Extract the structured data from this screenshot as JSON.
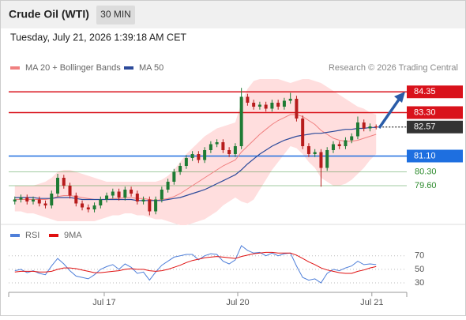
{
  "header": {
    "title": "Crude Oil (WTI)",
    "timeframe": "30 MIN",
    "timestamp": "Tuesday, July 21, 2026 1:39:18 AM CET"
  },
  "chart_data": [
    {
      "type": "candlestick",
      "credit": "Research © 2026 Trading Central",
      "xlim": [
        -1,
        64
      ],
      "ylim": [
        77.8,
        85.0
      ],
      "up_color": "#1e7b34",
      "down_color": "#b71c1c",
      "open": [
        78.8,
        78.9,
        79.0,
        78.8,
        78.9,
        78.7,
        78.6,
        79.2,
        80.0,
        79.6,
        79.1,
        78.7,
        78.5,
        78.4,
        78.6,
        78.9,
        79.1,
        79.3,
        79.0,
        79.4,
        79.2,
        78.8,
        78.9,
        78.3,
        78.9,
        79.4,
        79.8,
        80.3,
        80.6,
        81.0,
        81.2,
        80.9,
        81.4,
        81.7,
        81.8,
        81.4,
        81.2,
        81.6,
        84.1,
        83.8,
        83.6,
        83.7,
        83.5,
        83.8,
        83.6,
        83.9,
        84.0,
        83.0,
        81.6,
        81.2,
        81.3,
        80.5,
        81.4,
        81.7,
        81.6,
        81.9,
        82.1,
        82.8,
        82.5,
        82.6
      ],
      "high": [
        79.05,
        79.15,
        79.15,
        79.05,
        79.05,
        78.85,
        79.35,
        80.2,
        80.15,
        79.75,
        79.25,
        78.85,
        78.65,
        78.75,
        79.05,
        79.25,
        79.45,
        79.45,
        79.55,
        79.55,
        79.35,
        79.05,
        79.05,
        79.05,
        79.55,
        79.95,
        80.45,
        80.75,
        81.15,
        81.35,
        81.35,
        81.55,
        81.85,
        81.95,
        81.95,
        81.55,
        81.75,
        84.55,
        84.25,
        83.95,
        83.85,
        83.85,
        83.95,
        83.95,
        84.05,
        84.3,
        84.15,
        83.15,
        81.75,
        81.45,
        81.45,
        81.55,
        81.85,
        81.85,
        82.05,
        82.25,
        83.1,
        82.95,
        82.75,
        82.7
      ],
      "low": [
        78.65,
        78.75,
        78.65,
        78.65,
        78.55,
        78.45,
        78.45,
        79.05,
        79.45,
        78.95,
        78.55,
        78.35,
        78.25,
        78.25,
        78.45,
        78.75,
        78.95,
        78.85,
        78.85,
        79.05,
        78.65,
        78.65,
        78.1,
        78.15,
        78.75,
        79.25,
        79.65,
        80.15,
        80.45,
        80.85,
        80.75,
        80.75,
        81.25,
        81.55,
        81.25,
        81.05,
        81.05,
        81.45,
        83.65,
        83.45,
        83.45,
        83.35,
        83.35,
        83.45,
        83.45,
        83.75,
        82.85,
        81.45,
        81.05,
        81.05,
        79.55,
        80.35,
        81.25,
        81.45,
        81.45,
        81.75,
        81.95,
        82.35,
        82.35,
        82.45
      ],
      "close": [
        78.9,
        79.0,
        78.8,
        78.9,
        78.7,
        78.6,
        79.2,
        80.0,
        79.6,
        79.1,
        78.7,
        78.5,
        78.4,
        78.6,
        78.9,
        79.1,
        79.3,
        79.0,
        79.4,
        79.2,
        78.8,
        78.9,
        78.3,
        78.9,
        79.4,
        79.8,
        80.3,
        80.6,
        81.0,
        81.2,
        80.9,
        81.4,
        81.7,
        81.8,
        81.4,
        81.2,
        81.6,
        84.1,
        83.8,
        83.6,
        83.7,
        83.5,
        83.8,
        83.6,
        83.9,
        84.0,
        83.0,
        81.6,
        81.2,
        81.3,
        80.5,
        81.4,
        81.7,
        81.6,
        81.9,
        82.1,
        82.8,
        82.5,
        82.6,
        82.57
      ],
      "series": [
        {
          "name": "MA 20 + Bollinger Bands",
          "color": "#f08080",
          "band_color": "#ffdede",
          "values": [
            78.9,
            78.9,
            78.9,
            78.9,
            78.9,
            78.9,
            78.95,
            79.05,
            79.1,
            79.1,
            79.05,
            79.0,
            78.95,
            78.9,
            78.9,
            78.9,
            78.95,
            78.95,
            79.0,
            79.0,
            78.95,
            78.95,
            78.9,
            78.85,
            78.9,
            78.95,
            79.05,
            79.2,
            79.4,
            79.6,
            79.8,
            80.0,
            80.2,
            80.4,
            80.6,
            80.75,
            80.9,
            81.3,
            81.6,
            81.9,
            82.2,
            82.45,
            82.7,
            82.9,
            83.05,
            83.2,
            83.2,
            83.1,
            82.9,
            82.7,
            82.4,
            82.2,
            82.0,
            81.9,
            81.85,
            81.85,
            81.9,
            82.0,
            82.1,
            82.2
          ],
          "upper": [
            79.6,
            79.6,
            79.6,
            79.6,
            79.7,
            79.8,
            80.0,
            80.3,
            80.4,
            80.4,
            80.3,
            80.2,
            80.1,
            80.0,
            79.9,
            79.8,
            79.8,
            79.8,
            79.8,
            79.8,
            79.8,
            79.8,
            79.8,
            79.8,
            79.9,
            80.1,
            80.4,
            80.8,
            81.2,
            81.5,
            81.8,
            82.1,
            82.3,
            82.5,
            82.6,
            82.7,
            82.8,
            83.8,
            84.5,
            84.9,
            85.0,
            85.0,
            85.0,
            85.0,
            84.9,
            84.8,
            84.9,
            85.0,
            85.0,
            84.9,
            84.8,
            84.6,
            84.4,
            84.2,
            84.0,
            83.8,
            83.6,
            83.5,
            83.3,
            83.2
          ],
          "lower": [
            78.3,
            78.3,
            78.2,
            78.2,
            78.1,
            78.0,
            77.9,
            77.8,
            77.8,
            77.8,
            77.8,
            77.8,
            77.8,
            77.8,
            77.9,
            78.0,
            78.1,
            78.1,
            78.2,
            78.2,
            78.1,
            78.1,
            78.0,
            77.9,
            77.9,
            77.8,
            77.7,
            77.6,
            77.6,
            77.7,
            77.8,
            77.9,
            78.1,
            78.3,
            78.6,
            78.8,
            79.0,
            78.8,
            78.7,
            78.9,
            79.4,
            79.9,
            80.4,
            80.8,
            81.2,
            81.6,
            81.5,
            81.2,
            80.8,
            80.5,
            80.0,
            79.8,
            79.6,
            79.6,
            79.7,
            79.9,
            80.2,
            80.5,
            80.9,
            81.2
          ]
        },
        {
          "name": "MA 50",
          "color": "#2c4a9a",
          "values": [
            79.0,
            79.0,
            79.0,
            79.0,
            78.95,
            78.95,
            78.95,
            79.0,
            79.0,
            79.0,
            78.95,
            78.9,
            78.9,
            78.9,
            78.9,
            78.9,
            78.9,
            78.9,
            78.9,
            78.9,
            78.85,
            78.85,
            78.85,
            78.85,
            78.85,
            78.9,
            78.95,
            79.0,
            79.1,
            79.2,
            79.3,
            79.4,
            79.55,
            79.7,
            79.85,
            80.0,
            80.15,
            80.4,
            80.7,
            80.95,
            81.2,
            81.4,
            81.6,
            81.75,
            81.9,
            82.0,
            82.1,
            82.15,
            82.2,
            82.25,
            82.25,
            82.3,
            82.35,
            82.4,
            82.45,
            82.45,
            82.5,
            82.5,
            82.55,
            82.55
          ]
        }
      ],
      "levels": [
        {
          "value": 84.35,
          "color": "#d9121b",
          "style": "box"
        },
        {
          "value": 83.3,
          "label": "83.30",
          "color": "#d9121b",
          "style": "box"
        },
        {
          "value": 82.57,
          "color": "#333333",
          "style": "current"
        },
        {
          "value": 81.1,
          "label": "81.10",
          "color": "#1e6fe0",
          "style": "box"
        },
        {
          "value": 80.3,
          "label": "80.30",
          "color": "#2e8b2e",
          "style": "text"
        },
        {
          "value": 79.6,
          "label": "79.60",
          "color": "#2e8b2e",
          "style": "text"
        }
      ]
    },
    {
      "type": "line",
      "xlim": [
        -1,
        64
      ],
      "ylim": [
        16,
        86
      ],
      "yticks": [
        70,
        50,
        30
      ],
      "grid": true,
      "xticks": [
        {
          "value": 14.6,
          "label": "Jul 17"
        },
        {
          "value": 36.4,
          "label": "Jul 20"
        },
        {
          "value": 58.3,
          "label": "Jul 21"
        }
      ],
      "series": [
        {
          "name": "RSI",
          "color": "#4f7fd9",
          "values": [
            48,
            50,
            45,
            48,
            44,
            42,
            55,
            66,
            58,
            48,
            40,
            38,
            36,
            42,
            50,
            54,
            57,
            50,
            58,
            53,
            44,
            46,
            34,
            46,
            56,
            62,
            68,
            70,
            72,
            72,
            64,
            70,
            73,
            72,
            62,
            58,
            64,
            85,
            78,
            74,
            75,
            70,
            74,
            70,
            73,
            74,
            55,
            38,
            34,
            36,
            30,
            44,
            50,
            48,
            52,
            55,
            62,
            57,
            58,
            57
          ]
        },
        {
          "name": "9MA",
          "color": "#e01010",
          "values": [
            46,
            47,
            47,
            47,
            46,
            46,
            47,
            50,
            52,
            52,
            51,
            49,
            47,
            45,
            45,
            46,
            47,
            48,
            50,
            51,
            50,
            50,
            48,
            47,
            48,
            50,
            53,
            56,
            60,
            63,
            65,
            67,
            68,
            69,
            68,
            67,
            66,
            69,
            71,
            73,
            74,
            75,
            75,
            74,
            74,
            74,
            71,
            66,
            61,
            57,
            52,
            49,
            47,
            45,
            44,
            44,
            47,
            49,
            52,
            54
          ]
        }
      ]
    }
  ]
}
